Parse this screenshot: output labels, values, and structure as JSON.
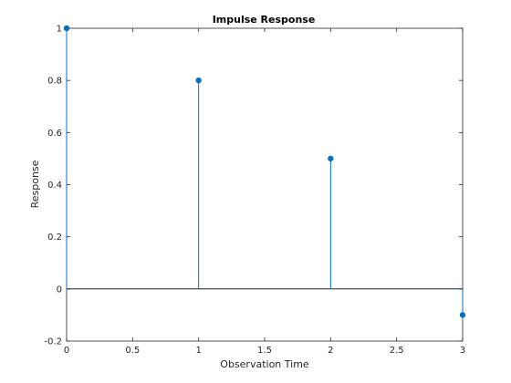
{
  "chart_data": {
    "type": "stem",
    "title": "Impulse Response",
    "xlabel": "Observation Time",
    "ylabel": "Response",
    "xlim": [
      0,
      3
    ],
    "ylim": [
      -0.2,
      1
    ],
    "xticks": [
      0,
      0.5,
      1,
      1.5,
      2,
      2.5,
      3
    ],
    "xtick_labels": [
      "0",
      "0.5",
      "1",
      "1.5",
      "2",
      "2.5",
      "3"
    ],
    "yticks": [
      -0.2,
      0,
      0.2,
      0.4,
      0.6,
      0.8,
      1
    ],
    "ytick_labels": [
      "-0.2",
      "0",
      "0.2",
      "0.4",
      "0.6",
      "0.8",
      "1"
    ],
    "baseline": 0,
    "grid": false,
    "series": [
      {
        "x": [
          0,
          1,
          2,
          3
        ],
        "y": [
          1,
          0.8,
          0.5,
          -0.1
        ]
      }
    ],
    "colors": {
      "stem": "#0072bd",
      "baseline": "#000000",
      "axes": "#262626"
    }
  }
}
